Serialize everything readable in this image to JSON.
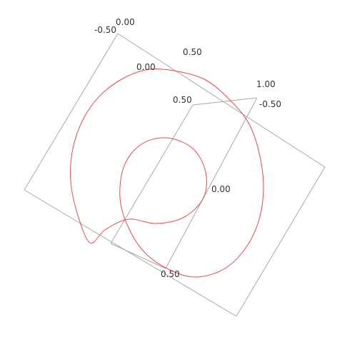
{
  "chart_data": {
    "type": "line",
    "projection": "3d-oblique",
    "title": "",
    "xlabel": "",
    "ylabel": "",
    "zlabel": "",
    "grid": false,
    "legend": "none",
    "axes_box_color": "#a9a9a9",
    "series": [
      {
        "color": "#e8494f",
        "closed": true,
        "shape": "three-lobed closed space curve",
        "points": [
          [
            -0.38,
            0.34
          ],
          [
            -0.44,
            0.2
          ],
          [
            -0.47,
            0.05
          ],
          [
            -0.46,
            -0.1
          ],
          [
            -0.41,
            -0.24
          ],
          [
            -0.33,
            -0.35
          ],
          [
            -0.22,
            -0.43
          ],
          [
            -0.1,
            -0.47
          ],
          [
            0.03,
            -0.46
          ],
          [
            0.16,
            -0.42
          ],
          [
            0.27,
            -0.33
          ],
          [
            0.36,
            -0.22
          ],
          [
            0.41,
            -0.08
          ],
          [
            0.43,
            0.08
          ],
          [
            0.41,
            0.23
          ],
          [
            0.35,
            0.36
          ],
          [
            0.25,
            0.46
          ],
          [
            0.12,
            0.5
          ],
          [
            0.0,
            0.47
          ],
          [
            -0.12,
            0.39
          ],
          [
            -0.2,
            0.27
          ],
          [
            -0.24,
            0.13
          ],
          [
            -0.22,
            -0.02
          ],
          [
            -0.14,
            -0.12
          ],
          [
            -0.02,
            -0.15
          ],
          [
            0.1,
            -0.1
          ],
          [
            0.16,
            0.01
          ],
          [
            0.15,
            0.13
          ],
          [
            0.06,
            0.22
          ],
          [
            -0.07,
            0.25
          ],
          [
            -0.2,
            0.23
          ],
          [
            -0.31,
            0.28
          ]
        ]
      }
    ],
    "ticks": [
      {
        "text": "0.00"
      },
      {
        "text": "-0.50"
      },
      {
        "text": "0.50"
      },
      {
        "text": "0.00"
      },
      {
        "text": "0.50"
      },
      {
        "text": "1.00"
      },
      {
        "text": "-0.50"
      },
      {
        "text": "0.00"
      },
      {
        "text": "0.50"
      }
    ]
  }
}
